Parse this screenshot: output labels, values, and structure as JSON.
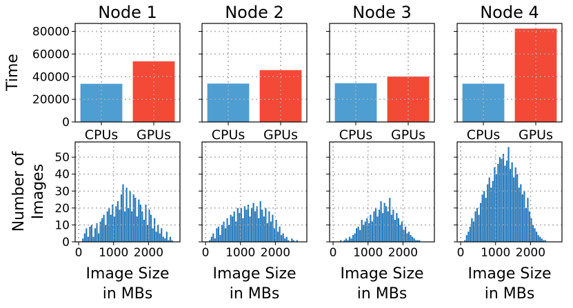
{
  "chart_data": {
    "type": "bar",
    "layout": "2 rows x 4 columns of subplots",
    "colors": {
      "cpu": "#4f9ed1",
      "gpu": "#f24a37",
      "hist": "#2b7bba"
    },
    "nodes": [
      {
        "title": "Node 1",
        "time": {
          "categories": [
            "CPUs",
            "GPUs"
          ],
          "values": [
            33700,
            53500
          ]
        },
        "hist": {
          "type": "histogram",
          "bin_start": 100,
          "bin_width": 50,
          "counts": [
            2,
            5,
            8,
            3,
            9,
            10,
            3,
            8,
            11,
            5,
            12,
            14,
            16,
            10,
            18,
            20,
            16,
            22,
            15,
            21,
            24,
            19,
            28,
            34,
            18,
            32,
            20,
            30,
            18,
            28,
            26,
            15,
            25,
            22,
            18,
            13,
            22,
            10,
            19,
            16,
            8,
            14,
            6,
            10,
            5,
            8,
            3,
            2,
            6,
            1,
            3,
            1
          ]
        }
      },
      {
        "title": "Node 2",
        "time": {
          "categories": [
            "CPUs",
            "GPUs"
          ],
          "values": [
            33900,
            45800
          ]
        },
        "hist": {
          "type": "histogram",
          "bin_start": 100,
          "bin_width": 50,
          "counts": [
            1,
            3,
            5,
            2,
            8,
            9,
            4,
            10,
            12,
            8,
            14,
            10,
            16,
            15,
            18,
            12,
            20,
            17,
            20,
            14,
            21,
            19,
            22,
            15,
            20,
            23,
            18,
            21,
            14,
            24,
            19,
            15,
            20,
            11,
            18,
            12,
            16,
            8,
            13,
            6,
            9,
            4,
            5,
            2,
            3,
            1,
            0,
            2,
            1,
            0,
            1,
            0
          ]
        }
      },
      {
        "title": "Node 3",
        "time": {
          "categories": [
            "CPUs",
            "GPUs"
          ],
          "values": [
            34200,
            40100
          ]
        },
        "hist": {
          "type": "histogram",
          "bin_start": 100,
          "bin_width": 50,
          "counts": [
            0,
            0,
            1,
            0,
            1,
            2,
            1,
            3,
            2,
            4,
            5,
            8,
            9,
            7,
            13,
            10,
            12,
            14,
            11,
            16,
            12,
            18,
            20,
            15,
            19,
            24,
            17,
            23,
            21,
            18,
            26,
            16,
            19,
            13,
            17,
            14,
            10,
            12,
            7,
            9,
            5,
            6,
            4,
            3,
            2,
            1,
            1,
            1,
            0,
            0,
            0,
            0
          ]
        }
      },
      {
        "title": "Node 4",
        "time": {
          "categories": [
            "CPUs",
            "GPUs"
          ],
          "values": [
            33800,
            82400
          ]
        },
        "hist": {
          "type": "histogram",
          "bin_start": 100,
          "bin_width": 50,
          "counts": [
            1,
            4,
            6,
            9,
            14,
            12,
            18,
            20,
            16,
            23,
            28,
            30,
            26,
            34,
            38,
            32,
            36,
            44,
            40,
            46,
            50,
            49,
            52,
            45,
            48,
            56,
            43,
            47,
            38,
            44,
            40,
            32,
            34,
            28,
            30,
            20,
            26,
            18,
            14,
            10,
            8,
            6,
            4,
            3,
            2,
            1,
            1,
            0,
            0,
            0,
            0,
            0
          ]
        }
      }
    ],
    "row1": {
      "ylabel": "Time",
      "ylim": [
        0,
        87000
      ],
      "yticks": [
        "0",
        "20000",
        "40000",
        "60000",
        "80000"
      ]
    },
    "row2": {
      "ylabel_line1": "Number of",
      "ylabel_line2": "Images",
      "ylim": [
        0,
        59
      ],
      "yticks": [
        "0",
        "10",
        "20",
        "30",
        "40",
        "50"
      ],
      "xlim": [
        -100,
        2900
      ],
      "xticks": [
        "0",
        "1000",
        "2000"
      ],
      "xlabel_line1": "Image Size",
      "xlabel_line2": "in MBs"
    }
  }
}
